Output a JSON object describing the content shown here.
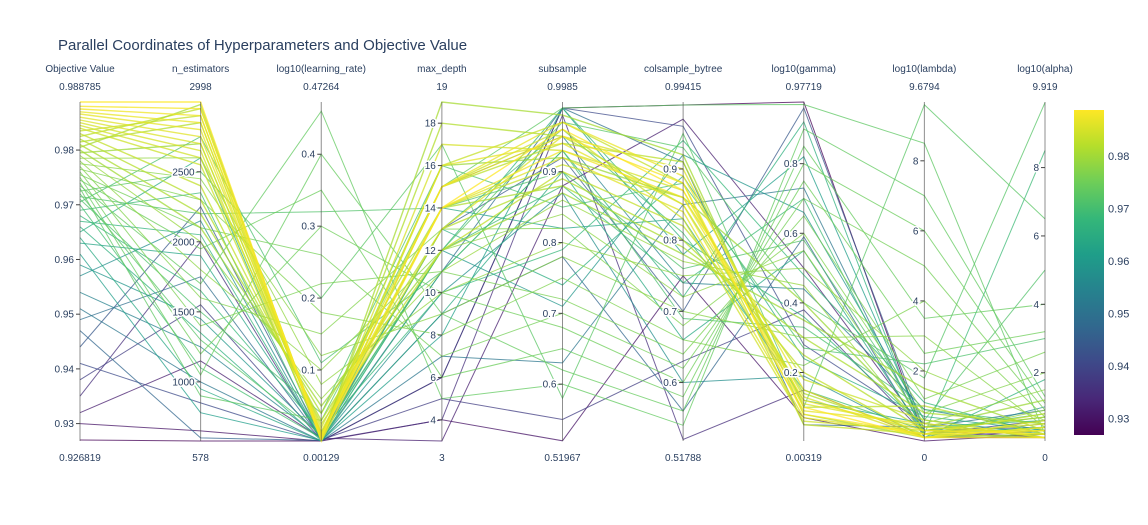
{
  "chart_data": {
    "type": "parallel_coordinates",
    "title": "Parallel Coordinates of Hyperparameters and Objective Value",
    "dimensions": [
      {
        "label": "Objective Value",
        "min": 0.926819,
        "max": 0.988785,
        "min_label": "0.926819",
        "max_label": "0.988785",
        "ticks": [
          0.93,
          0.94,
          0.95,
          0.96,
          0.97,
          0.98
        ]
      },
      {
        "label": "n_estimators",
        "min": 578,
        "max": 2998,
        "min_label": "578",
        "max_label": "2998",
        "ticks": [
          1000,
          1500,
          2000,
          2500
        ]
      },
      {
        "label": "log10(learning_rate)",
        "min": 0.00129,
        "max": 0.47264,
        "min_label": "0.00129",
        "max_label": "0.47264",
        "ticks": [
          0.1,
          0.2,
          0.3,
          0.4
        ]
      },
      {
        "label": "max_depth",
        "min": 3,
        "max": 19,
        "min_label": "3",
        "max_label": "19",
        "ticks": [
          4,
          6,
          8,
          10,
          12,
          14,
          16,
          18
        ]
      },
      {
        "label": "subsample",
        "min": 0.51967,
        "max": 0.9985,
        "min_label": "0.51967",
        "max_label": "0.9985",
        "ticks": [
          0.6,
          0.7,
          0.8,
          0.9
        ]
      },
      {
        "label": "colsample_bytree",
        "min": 0.51788,
        "max": 0.99415,
        "min_label": "0.51788",
        "max_label": "0.99415",
        "ticks": [
          0.6,
          0.7,
          0.8,
          0.9
        ]
      },
      {
        "label": "log10(gamma)",
        "min": 0.00319,
        "max": 0.97719,
        "min_label": "0.00319",
        "max_label": "0.97719",
        "ticks": [
          0.2,
          0.4,
          0.6,
          0.8
        ]
      },
      {
        "label": "log10(lambda)",
        "min": 0,
        "max": 9.6794,
        "min_label": "0",
        "max_label": "9.6794",
        "ticks": [
          2,
          4,
          6,
          8
        ]
      },
      {
        "label": "log10(alpha)",
        "min": 0,
        "max": 9.919,
        "min_label": "0",
        "max_label": "9.919",
        "ticks": [
          2,
          4,
          6,
          8
        ]
      }
    ],
    "colorscale": "Viridis",
    "colorbar": {
      "min": 0.926819,
      "max": 0.988785,
      "ticks": [
        0.93,
        0.94,
        0.95,
        0.96,
        0.97,
        0.98
      ]
    },
    "lines": [
      [
        0.9888,
        2998,
        0.0013,
        14,
        0.96,
        0.87,
        0.1,
        0.1,
        0.1
      ],
      [
        0.988,
        2950,
        0.005,
        15,
        0.95,
        0.88,
        0.08,
        0.2,
        0.3
      ],
      [
        0.9875,
        2900,
        0.01,
        14,
        0.93,
        0.86,
        0.12,
        0.3,
        0.2
      ],
      [
        0.987,
        2850,
        0.008,
        15,
        0.97,
        0.89,
        0.15,
        0.1,
        0.4
      ],
      [
        0.9866,
        2800,
        0.006,
        16,
        0.94,
        0.85,
        0.09,
        0.5,
        0.1
      ],
      [
        0.986,
        2750,
        0.015,
        14,
        0.92,
        0.84,
        0.07,
        0.2,
        0.5
      ],
      [
        0.9855,
        2700,
        0.012,
        13,
        0.95,
        0.9,
        0.11,
        0.4,
        0.2
      ],
      [
        0.985,
        2650,
        0.004,
        17,
        0.93,
        0.87,
        0.13,
        0.1,
        0.6
      ],
      [
        0.9845,
        2600,
        0.02,
        15,
        0.96,
        0.83,
        0.06,
        0.3,
        0.3
      ],
      [
        0.984,
        2550,
        0.009,
        14,
        0.91,
        0.86,
        0.18,
        0.6,
        0.1
      ],
      [
        0.9835,
        2900,
        0.003,
        16,
        0.97,
        0.88,
        0.05,
        0.2,
        0.8
      ],
      [
        0.983,
        2400,
        0.025,
        12,
        0.9,
        0.82,
        0.2,
        0.1,
        0.4
      ],
      [
        0.9825,
        2950,
        0.007,
        15,
        0.94,
        0.91,
        0.1,
        1.0,
        0.2
      ],
      [
        0.982,
        2300,
        0.03,
        13,
        0.89,
        0.8,
        0.25,
        0.3,
        0.7
      ],
      [
        0.9815,
        2850,
        0.005,
        18,
        0.95,
        0.85,
        0.14,
        0.2,
        0.1
      ],
      [
        0.981,
        2200,
        0.04,
        14,
        0.88,
        0.79,
        0.3,
        0.8,
        0.5
      ],
      [
        0.9805,
        2980,
        0.002,
        19,
        0.98,
        0.92,
        0.08,
        0.1,
        0.2
      ],
      [
        0.98,
        2100,
        0.05,
        12,
        0.87,
        0.78,
        0.35,
        1.5,
        0.3
      ],
      [
        0.9795,
        2700,
        0.011,
        16,
        0.92,
        0.86,
        0.4,
        0.4,
        1.2
      ],
      [
        0.979,
        2000,
        0.06,
        11,
        0.86,
        0.77,
        0.45,
        0.2,
        0.9
      ],
      [
        0.9785,
        2600,
        0.08,
        10,
        0.8,
        0.75,
        0.5,
        2.0,
        0.6
      ],
      [
        0.978,
        1800,
        0.1,
        12,
        0.84,
        0.72,
        0.55,
        0.5,
        1.5
      ],
      [
        0.9775,
        2450,
        0.12,
        9,
        0.78,
        0.7,
        0.3,
        3.0,
        0.4
      ],
      [
        0.977,
        1600,
        0.15,
        13,
        0.82,
        0.68,
        0.6,
        0.8,
        2.0
      ],
      [
        0.9765,
        2300,
        0.18,
        8,
        0.75,
        0.66,
        0.22,
        4.0,
        0.7
      ],
      [
        0.976,
        1400,
        0.22,
        11,
        0.72,
        0.64,
        0.65,
        1.2,
        2.6
      ],
      [
        0.9755,
        2100,
        0.26,
        7,
        0.7,
        0.62,
        0.7,
        5.0,
        0.9
      ],
      [
        0.975,
        1200,
        0.3,
        10,
        0.68,
        0.6,
        0.75,
        2.5,
        3.2
      ],
      [
        0.9745,
        1950,
        0.35,
        6,
        0.65,
        0.58,
        0.8,
        6.0,
        1.1
      ],
      [
        0.974,
        1050,
        0.4,
        9,
        0.62,
        0.56,
        0.85,
        3.5,
        4.0
      ],
      [
        0.9735,
        1700,
        0.46,
        5,
        0.6,
        0.54,
        0.9,
        7.0,
        1.3
      ],
      [
        0.973,
        900,
        0.03,
        15,
        0.99,
        0.99,
        0.97,
        8.5,
        0.2
      ],
      [
        0.9725,
        2500,
        0.2,
        17,
        0.58,
        0.95,
        0.1,
        9.6,
        6.5
      ],
      [
        0.972,
        1300,
        0.01,
        12,
        0.97,
        0.93,
        0.4,
        1.8,
        9.9
      ],
      [
        0.9715,
        2200,
        0.32,
        14,
        0.9,
        0.76,
        0.58,
        0.6,
        5.0
      ],
      [
        0.971,
        1500,
        0.04,
        16,
        0.85,
        0.88,
        0.27,
        2.2,
        3.0
      ],
      [
        0.9705,
        2750,
        0.11,
        11,
        0.93,
        0.69,
        0.33,
        0.9,
        0.5
      ],
      [
        0.97,
        1100,
        0.005,
        13,
        0.96,
        0.81,
        0.15,
        0.3,
        0.8
      ],
      [
        0.969,
        2350,
        0.002,
        12,
        0.88,
        0.74,
        0.7,
        0.2,
        8.5
      ],
      [
        0.968,
        1650,
        0.015,
        10,
        0.79,
        0.94,
        0.48,
        1.1,
        0.2
      ],
      [
        0.967,
        2050,
        0.003,
        12,
        0.99,
        0.8,
        0.36,
        0.4,
        0.6
      ],
      [
        0.966,
        1350,
        0.002,
        11,
        0.93,
        0.72,
        0.92,
        0.1,
        1.8
      ],
      [
        0.965,
        2600,
        0.004,
        13,
        0.74,
        0.89,
        0.24,
        0.7,
        0.3
      ],
      [
        0.964,
        950,
        0.001,
        9,
        0.9,
        0.66,
        0.55,
        0.2,
        0.4
      ],
      [
        0.963,
        1900,
        0.006,
        14,
        0.82,
        0.83,
        0.12,
        0.5,
        0.1
      ],
      [
        0.961,
        780,
        0.002,
        8,
        0.99,
        0.78,
        0.82,
        0.3,
        0.7
      ],
      [
        0.959,
        1450,
        0.008,
        12,
        0.71,
        0.92,
        0.66,
        0.6,
        0.2
      ],
      [
        0.957,
        2150,
        0.003,
        10,
        0.87,
        0.6,
        0.19,
        0.1,
        1.0
      ],
      [
        0.954,
        1250,
        0.005,
        15,
        0.95,
        0.74,
        0.44,
        0.9,
        0.3
      ],
      [
        0.951,
        1000,
        0.001,
        7,
        0.63,
        0.85,
        0.73,
        0.2,
        0.5
      ],
      [
        0.949,
        1750,
        0.004,
        11,
        0.99,
        0.91,
        0.05,
        0.4,
        0.9
      ],
      [
        0.947,
        600,
        0.002,
        9,
        0.78,
        0.56,
        0.59,
        0.1,
        0.2
      ],
      [
        0.944,
        2250,
        0.007,
        13,
        0.92,
        0.7,
        0.96,
        0.3,
        0.4
      ],
      [
        0.941,
        850,
        0.001,
        6,
        0.99,
        0.96,
        0.28,
        0.5,
        0.1
      ],
      [
        0.938,
        1550,
        0.003,
        5,
        0.55,
        0.63,
        0.38,
        0.2,
        0.6
      ],
      [
        0.935,
        2000,
        0.002,
        4,
        0.98,
        0.52,
        0.15,
        0.1,
        0.3
      ],
      [
        0.932,
        1150,
        0.005,
        3,
        0.88,
        0.97,
        0.5,
        0.3,
        0.1
      ],
      [
        0.93,
        650,
        0.001,
        4,
        0.52,
        0.75,
        0.07,
        0.0,
        0.2
      ],
      [
        0.927,
        578,
        0.0013,
        6,
        0.99,
        0.99,
        0.98,
        0.1,
        0.1
      ]
    ]
  }
}
